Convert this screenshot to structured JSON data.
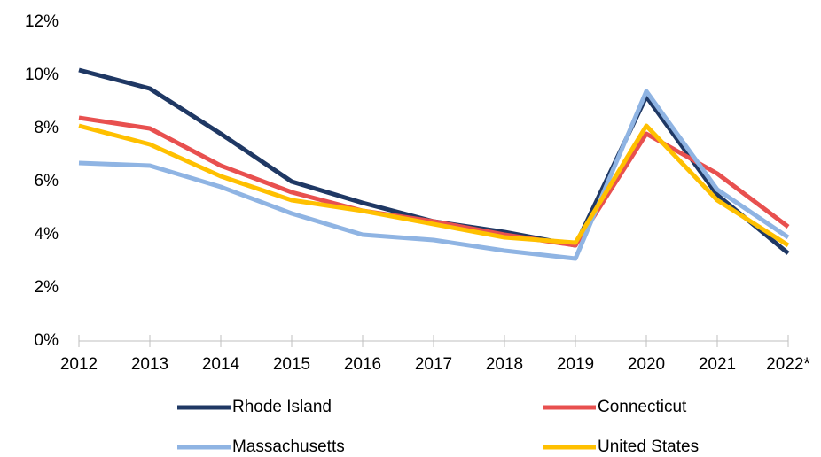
{
  "chart_data": {
    "type": "line",
    "categories": [
      "2012",
      "2013",
      "2014",
      "2015",
      "2016",
      "2017",
      "2018",
      "2019",
      "2020",
      "2021",
      "2022*"
    ],
    "series": [
      {
        "name": "Rhode Island",
        "color": "#1f3864",
        "values": [
          10.2,
          9.5,
          7.8,
          6.0,
          5.2,
          4.5,
          4.1,
          3.6,
          9.2,
          5.5,
          3.3
        ]
      },
      {
        "name": "Connecticut",
        "color": "#e8504f",
        "values": [
          8.4,
          8.0,
          6.6,
          5.6,
          4.9,
          4.5,
          4.0,
          3.6,
          7.8,
          6.3,
          4.3
        ]
      },
      {
        "name": "Massachusetts",
        "color": "#8fb4e3",
        "values": [
          6.7,
          6.6,
          5.8,
          4.8,
          4.0,
          3.8,
          3.4,
          3.1,
          9.4,
          5.7,
          3.9
        ]
      },
      {
        "name": "United States",
        "color": "#ffc000",
        "values": [
          8.1,
          7.4,
          6.2,
          5.3,
          4.9,
          4.4,
          3.9,
          3.7,
          8.1,
          5.3,
          3.6
        ]
      }
    ],
    "ylim": [
      0,
      12
    ],
    "yticks": [
      {
        "value": 0,
        "label": "0%"
      },
      {
        "value": 2,
        "label": "2%"
      },
      {
        "value": 4,
        "label": "4%"
      },
      {
        "value": 6,
        "label": "6%"
      },
      {
        "value": 8,
        "label": "8%"
      },
      {
        "value": 10,
        "label": "10%"
      },
      {
        "value": 12,
        "label": "12%"
      }
    ],
    "grid": false,
    "legend": "bottom"
  }
}
